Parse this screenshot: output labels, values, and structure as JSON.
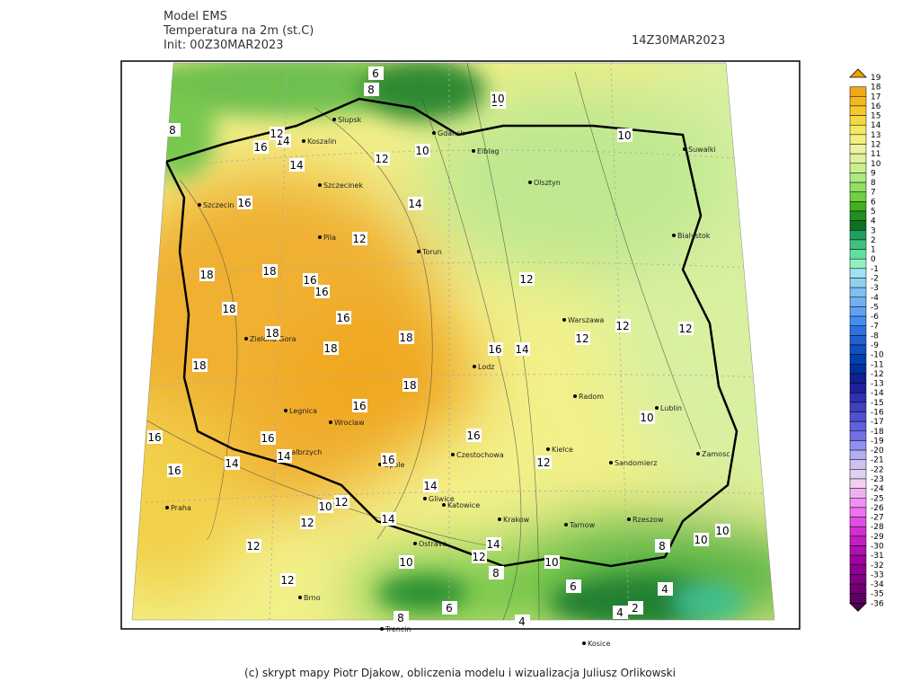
{
  "header": {
    "model": "Model EMS",
    "variable": "Temperatura na 2m (st.C)",
    "init": "Init: 00Z30MAR2023",
    "valid": "14Z30MAR2023"
  },
  "footer": "(c) skrypt mapy Piotr Djakow, obliczenia modelu i wizualizacja Juliusz Orlikowski",
  "cities": [
    "Slupsk",
    "Gdansk",
    "Elblag",
    "Olsztyn",
    "Suwalki",
    "Koszalin",
    "Szczecinek",
    "Szczecin",
    "Pila",
    "Torun",
    "Bialystok",
    "Zielona Gora",
    "Warszawa",
    "Lodz",
    "Radom",
    "Lublin",
    "Legnica",
    "Wroclaw",
    "Walbrzych",
    "Opole",
    "Czestochowa",
    "Kielce",
    "Sandomierz",
    "Zamosc",
    "Praha",
    "Gliwice",
    "Katowice",
    "Krakow",
    "Tarnow",
    "Rzeszow",
    "Ostrava",
    "Brno",
    "Trencin",
    "Kosice"
  ],
  "contour_labels": [
    6,
    8,
    10,
    8,
    12,
    16,
    14,
    10,
    10,
    10,
    14,
    12,
    14,
    16,
    12,
    18,
    18,
    16,
    16,
    16,
    12,
    12,
    18,
    18,
    18,
    16,
    14,
    18,
    12,
    12,
    18,
    18,
    16,
    10,
    16,
    16,
    12,
    14,
    16,
    14,
    16,
    12,
    16,
    10,
    12,
    12,
    14,
    14,
    12,
    10,
    14,
    12,
    10,
    8,
    10,
    8,
    6,
    10,
    4,
    12,
    8,
    6,
    4,
    2,
    4
  ],
  "legend": {
    "levels": [
      19,
      18,
      17,
      16,
      15,
      14,
      13,
      12,
      11,
      10,
      9,
      8,
      7,
      6,
      5,
      4,
      3,
      2,
      1,
      0,
      -1,
      -2,
      -3,
      -4,
      -5,
      -6,
      -7,
      -8,
      -9,
      -10,
      -11,
      -12,
      -13,
      -14,
      -15,
      -16,
      -17,
      -18,
      -19,
      -20,
      -21,
      -22,
      -23,
      -24,
      -25,
      -26,
      -27,
      -28,
      -29,
      -30,
      -31,
      -32,
      -33,
      -34,
      -35,
      -36
    ],
    "colors": [
      "#f5a000",
      "#f0a818",
      "#f5b820",
      "#f5c830",
      "#f5d840",
      "#f5e860",
      "#f0f080",
      "#f0f0a0",
      "#e0f0a0",
      "#c8f090",
      "#b0e880",
      "#90e060",
      "#70d040",
      "#40b020",
      "#209020",
      "#107020",
      "#20a060",
      "#40c080",
      "#60e0a0",
      "#90f0c0",
      "#a0e0f0",
      "#90d0f0",
      "#80c0f0",
      "#70b0f0",
      "#60a0f0",
      "#4090f0",
      "#3070e0",
      "#2060d0",
      "#1050c0",
      "#0040b0",
      "#0030a0",
      "#102090",
      "#2020a0",
      "#3030b0",
      "#4040c0",
      "#5050d0",
      "#6060e0",
      "#7070e0",
      "#9090f0",
      "#b0b0f0",
      "#d0c0f0",
      "#e0d0f0",
      "#f0d0f0",
      "#f0b0f0",
      "#f090f0",
      "#f070f0",
      "#e050e0",
      "#d030d0",
      "#c020c0",
      "#b010b0",
      "#a000a0",
      "#900090",
      "#800080",
      "#700070",
      "#600060",
      "#500050"
    ]
  }
}
